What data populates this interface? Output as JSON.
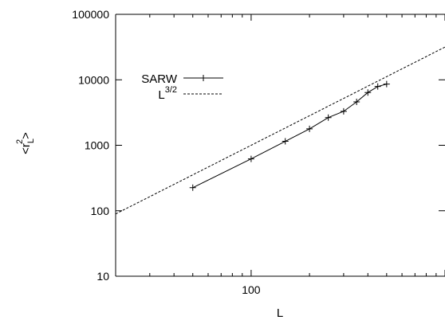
{
  "chart_data": {
    "type": "line",
    "xscale": "log",
    "yscale": "log",
    "xlim": [
      20,
      1000
    ],
    "ylim": [
      10,
      100000
    ],
    "xticks": [
      100
    ],
    "yticks": [
      10,
      100,
      1000,
      10000,
      100000
    ],
    "xtick_labels": [
      "100"
    ],
    "ytick_labels": [
      "10",
      "100",
      "1000",
      "10000",
      "100000"
    ],
    "xlabel": "L",
    "ylabel": {
      "base": "<r",
      "subscript": "L",
      "superscript": "2",
      "close": ">"
    },
    "legend_position": "top-left",
    "series": [
      {
        "name": "SARW",
        "style": "solid-with-plus-markers",
        "color": "#000000",
        "x": [
          50,
          100,
          150,
          200,
          250,
          300,
          350,
          400,
          450,
          500
        ],
        "y": [
          225,
          620,
          1150,
          1780,
          2650,
          3300,
          4600,
          6400,
          7900,
          8600
        ]
      },
      {
        "name_base": "L",
        "name_superscript": "3/2",
        "style": "dashed",
        "color": "#000000",
        "x": [
          20,
          1000
        ],
        "y": [
          89.4,
          31623
        ]
      }
    ]
  }
}
